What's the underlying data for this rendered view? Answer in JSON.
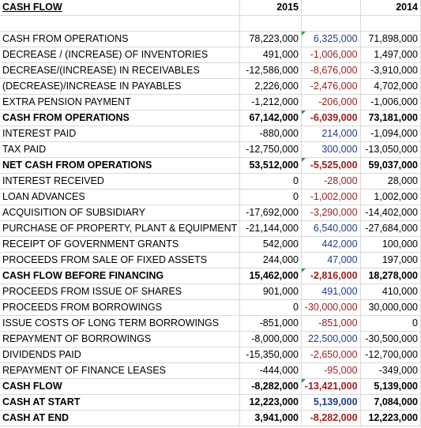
{
  "header": {
    "title": "CASH FLOW",
    "col2015": "2015",
    "col_diff": "",
    "col2014": "2014"
  },
  "rows": [
    {
      "label": "CASH FROM OPERATIONS",
      "v2015": "78,223,000",
      "diff": "6,325,000",
      "v2014": "71,898,000",
      "bold": false,
      "diff_sign": "pos"
    },
    {
      "label": "DECREASE / (INCREASE) OF INVENTORIES",
      "v2015": "491,000",
      "diff": "-1,006,000",
      "v2014": "1,497,000",
      "bold": false,
      "diff_sign": "neg"
    },
    {
      "label": "DECREASE/(INCREASE) IN RECEIVABLES",
      "v2015": "-12,586,000",
      "diff": "-8,676,000",
      "v2014": "-3,910,000",
      "bold": false,
      "diff_sign": "neg"
    },
    {
      "label": "(DECREASE)/INCREASE IN PAYABLES",
      "v2015": "2,226,000",
      "diff": "-2,476,000",
      "v2014": "4,702,000",
      "bold": false,
      "diff_sign": "neg"
    },
    {
      "label": "EXTRA PENSION PAYMENT",
      "v2015": "-1,212,000",
      "diff": "-206,000",
      "v2014": "-1,006,000",
      "bold": false,
      "diff_sign": "neg"
    },
    {
      "label": "CASH FROM OPERATIONS",
      "v2015": "67,142,000",
      "diff": "-6,039,000",
      "v2014": "73,181,000",
      "bold": true,
      "diff_sign": "neg"
    },
    {
      "label": "INTEREST PAID",
      "v2015": "-880,000",
      "diff": "214,000",
      "v2014": "-1,094,000",
      "bold": false,
      "diff_sign": "pos"
    },
    {
      "label": "TAX PAID",
      "v2015": "-12,750,000",
      "diff": "300,000",
      "v2014": "-13,050,000",
      "bold": false,
      "diff_sign": "pos"
    },
    {
      "label": "NET CASH FROM OPERATIONS",
      "v2015": "53,512,000",
      "diff": "-5,525,000",
      "v2014": "59,037,000",
      "bold": true,
      "diff_sign": "neg"
    },
    {
      "label": "INTEREST RECEIVED",
      "v2015": "0",
      "diff": "-28,000",
      "v2014": "28,000",
      "bold": false,
      "diff_sign": "neg"
    },
    {
      "label": "LOAN ADVANCES",
      "v2015": "0",
      "diff": "-1,002,000",
      "v2014": "1,002,000",
      "bold": false,
      "diff_sign": "neg"
    },
    {
      "label": "ACQUISITION OF SUBSIDIARY",
      "v2015": "-17,692,000",
      "diff": "-3,290,000",
      "v2014": "-14,402,000",
      "bold": false,
      "diff_sign": "neg"
    },
    {
      "label": "PURCHASE OF PROPERTY, PLANT & EQUIPMENT",
      "v2015": "-21,144,000",
      "diff": "6,540,000",
      "v2014": "-27,684,000",
      "bold": false,
      "diff_sign": "pos"
    },
    {
      "label": "RECEIPT OF GOVERNMENT GRANTS",
      "v2015": "542,000",
      "diff": "442,000",
      "v2014": "100,000",
      "bold": false,
      "diff_sign": "pos"
    },
    {
      "label": "PROCEEDS FROM SALE OF FIXED ASSETS",
      "v2015": "244,000",
      "diff": "47,000",
      "v2014": "197,000",
      "bold": false,
      "diff_sign": "pos"
    },
    {
      "label": "CASH FLOW BEFORE FINANCING",
      "v2015": "15,462,000",
      "diff": "-2,816,000",
      "v2014": "18,278,000",
      "bold": true,
      "diff_sign": "neg"
    },
    {
      "label": "PROCEEDS FROM ISSUE OF SHARES",
      "v2015": "901,000",
      "diff": "491,000",
      "v2014": "410,000",
      "bold": false,
      "diff_sign": "pos"
    },
    {
      "label": "PROCEEDS FROM BORROWINGS",
      "v2015": "0",
      "diff": "-30,000,000",
      "v2014": "30,000,000",
      "bold": false,
      "diff_sign": "neg"
    },
    {
      "label": "ISSUE COSTS OF LONG TERM BORROWINGS",
      "v2015": "-851,000",
      "diff": "-851,000",
      "v2014": "0",
      "bold": false,
      "diff_sign": "neg"
    },
    {
      "label": "REPAYMENT OF BORROWINGS",
      "v2015": "-8,000,000",
      "diff": "22,500,000",
      "v2014": "-30,500,000",
      "bold": false,
      "diff_sign": "pos"
    },
    {
      "label": "DIVIDENDS PAID",
      "v2015": "-15,350,000",
      "diff": "-2,650,000",
      "v2014": "-12,700,000",
      "bold": false,
      "diff_sign": "neg"
    },
    {
      "label": "REPAYMENT OF FINANCE LEASES",
      "v2015": "-444,000",
      "diff": "-95,000",
      "v2014": "-349,000",
      "bold": false,
      "diff_sign": "neg"
    },
    {
      "label": "CASH FLOW",
      "v2015": "-8,282,000",
      "diff": "-13,421,000",
      "v2014": "5,139,000",
      "bold": true,
      "diff_sign": "neg"
    },
    {
      "label": "CASH AT START",
      "v2015": "12,223,000",
      "diff": "5,139,000",
      "v2014": "7,084,000",
      "bold": true,
      "diff_sign": "pos"
    },
    {
      "label": "CASH AT END",
      "v2015": "3,941,000",
      "diff": "-8,282,000",
      "v2014": "12,223,000",
      "bold": true,
      "diff_sign": "neg"
    }
  ],
  "colors": {
    "positive_diff": "#1f3a93",
    "negative_diff": "#9b1c1c",
    "gridline": "#d9d9d9",
    "comment_marker": "#2e9b33"
  }
}
